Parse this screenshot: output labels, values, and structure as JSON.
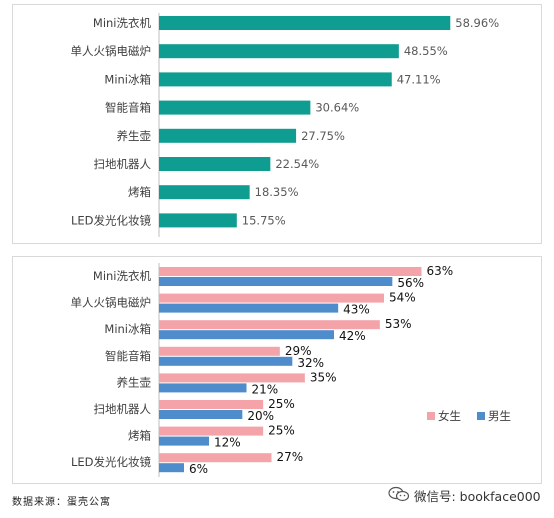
{
  "chart_data": [
    {
      "type": "bar",
      "orientation": "horizontal",
      "categories": [
        "Mini洗衣机",
        "单人火锅电磁炉",
        "Mini冰箱",
        "智能音箱",
        "养生壶",
        "扫地机器人",
        "烤箱",
        "LED发光化妆镜"
      ],
      "values": [
        58.96,
        48.55,
        47.11,
        30.64,
        27.75,
        22.54,
        18.35,
        15.75
      ],
      "value_labels": [
        "58.96%",
        "48.55%",
        "47.11%",
        "30.64%",
        "27.75%",
        "22.54%",
        "18.35%",
        "15.75%"
      ],
      "color": "#0f9c91",
      "xlim": [
        0,
        67
      ]
    },
    {
      "type": "bar",
      "orientation": "horizontal",
      "categories": [
        "Mini洗衣机",
        "单人火锅电磁炉",
        "Mini冰箱",
        "智能音箱",
        "养生壶",
        "扫地机器人",
        "烤箱",
        "LED发光化妆镜"
      ],
      "series": [
        {
          "name": "女生",
          "color": "#f4a3a9",
          "values": [
            63,
            54,
            53,
            29,
            35,
            25,
            25,
            27
          ],
          "labels": [
            "63%",
            "54%",
            "53%",
            "29%",
            "35%",
            "25%",
            "25%",
            "27%"
          ]
        },
        {
          "name": "男生",
          "color": "#4e8ccc",
          "values": [
            56,
            43,
            42,
            32,
            21,
            20,
            12,
            6
          ],
          "labels": [
            "56%",
            "43%",
            "42%",
            "32%",
            "21%",
            "20%",
            "12%",
            "6%"
          ]
        }
      ],
      "legend_position": "right",
      "xlim": [
        0,
        72
      ]
    }
  ],
  "footer": {
    "source": "数据来源：蛋壳公寓",
    "watermark": "微信号: bookface000",
    "watermark_icon": "wechat-logo-icon"
  }
}
